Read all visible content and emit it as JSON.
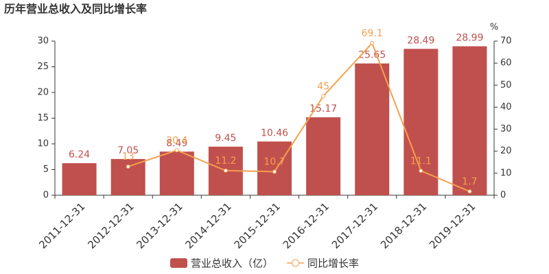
{
  "chart_data": {
    "type": "combo",
    "title": "历年营业总收入及同比增长率",
    "y2_label": "%",
    "categories": [
      "2011-12-31",
      "2012-12-31",
      "2013-12-31",
      "2014-12-31",
      "2015-12-31",
      "2016-12-31",
      "2017-12-31",
      "2018-12-31",
      "2019-12-31"
    ],
    "series": [
      {
        "name": "营业总收入（亿）",
        "type": "bar",
        "color": "#c0504d",
        "values": [
          6.24,
          7.05,
          8.49,
          9.45,
          10.46,
          15.17,
          25.65,
          28.49,
          28.99
        ]
      },
      {
        "name": "同比增长率",
        "type": "line",
        "axis": "y2",
        "color": "#f5a04e",
        "values": [
          null,
          13,
          20.4,
          11.2,
          10.7,
          45,
          69.1,
          11.1,
          1.7
        ]
      }
    ],
    "ylim": [
      0,
      30
    ],
    "yticks": [
      0,
      5,
      10,
      15,
      20,
      25,
      30
    ],
    "y2lim": [
      0,
      70
    ],
    "y2ticks": [
      0,
      10,
      20,
      30,
      40,
      50,
      60,
      70
    ],
    "legend": "bottom"
  }
}
